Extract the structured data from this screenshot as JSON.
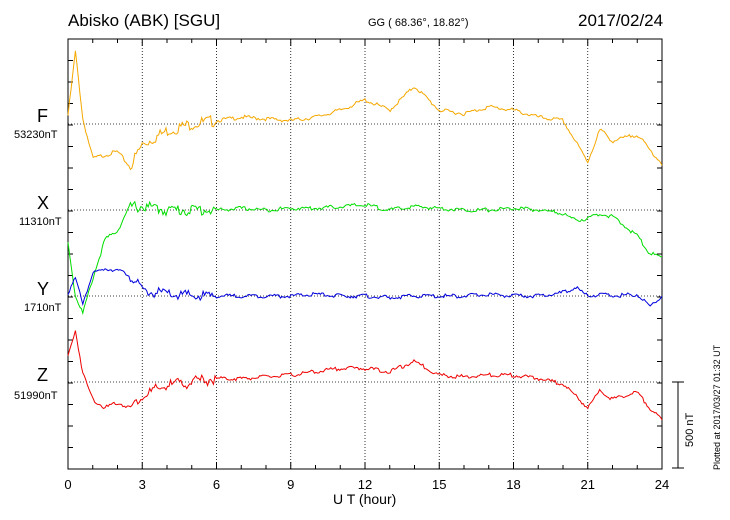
{
  "header": {
    "station": "Abisko (ABK)  [SGU]",
    "coords": "GG ( 68.36°,  18.82°)",
    "date": "2017/02/24"
  },
  "components": [
    {
      "name": "F",
      "base": "53230nT",
      "color": "#f5a800"
    },
    {
      "name": "X",
      "base": "11310nT",
      "color": "#00dd00"
    },
    {
      "name": "Y",
      "base": "1710nT",
      "color": "#0000dd"
    },
    {
      "name": "Z",
      "base": "51990nT",
      "color": "#ee0000"
    }
  ],
  "footer": {
    "xlabel": "U T (hour)",
    "plotted": "Plotted at 2017/03/27 01:32 UT",
    "scale": "500 nT"
  },
  "chart_data": {
    "type": "line",
    "x": [
      0,
      0.3,
      0.6,
      1,
      1.5,
      2,
      2.5,
      3,
      4,
      5,
      6,
      7,
      8,
      9,
      10,
      11,
      12,
      13,
      14,
      15,
      16,
      17,
      18,
      19,
      20,
      20.5,
      21,
      21.5,
      22,
      23,
      23.5,
      24
    ],
    "xlabel": "U T (hour)",
    "xlim": [
      0,
      24
    ],
    "xticks": [
      0,
      3,
      6,
      9,
      12,
      15,
      18,
      21,
      24
    ],
    "y_unit": "nT",
    "scale_bar_nT": 500,
    "series": [
      {
        "name": "F",
        "baseline_nT": 53230,
        "values": [
          50,
          420,
          30,
          -200,
          -180,
          -160,
          -250,
          -120,
          -40,
          0,
          20,
          40,
          30,
          20,
          40,
          80,
          140,
          80,
          220,
          80,
          60,
          100,
          80,
          40,
          20,
          -100,
          -220,
          -30,
          -100,
          -60,
          -150,
          -230
        ]
      },
      {
        "name": "X",
        "baseline_nT": 11310,
        "values": [
          -190,
          -500,
          -600,
          -400,
          -170,
          -120,
          20,
          20,
          0,
          0,
          0,
          10,
          0,
          10,
          10,
          20,
          30,
          0,
          20,
          10,
          0,
          0,
          10,
          0,
          -20,
          -60,
          -50,
          -20,
          -40,
          -150,
          -250,
          -280
        ]
      },
      {
        "name": "Y",
        "baseline_nT": 1710,
        "values": [
          20,
          100,
          -40,
          130,
          160,
          150,
          120,
          30,
          10,
          0,
          0,
          0,
          0,
          0,
          10,
          0,
          0,
          -10,
          0,
          0,
          0,
          10,
          0,
          0,
          20,
          50,
          0,
          10,
          0,
          10,
          -60,
          0
        ]
      },
      {
        "name": "Z",
        "baseline_nT": 51990,
        "values": [
          150,
          300,
          50,
          -100,
          -150,
          -120,
          -150,
          -80,
          -20,
          0,
          20,
          20,
          30,
          40,
          60,
          80,
          80,
          60,
          120,
          40,
          30,
          40,
          40,
          20,
          -10,
          -80,
          -150,
          -50,
          -100,
          -60,
          -150,
          -220
        ]
      }
    ]
  }
}
